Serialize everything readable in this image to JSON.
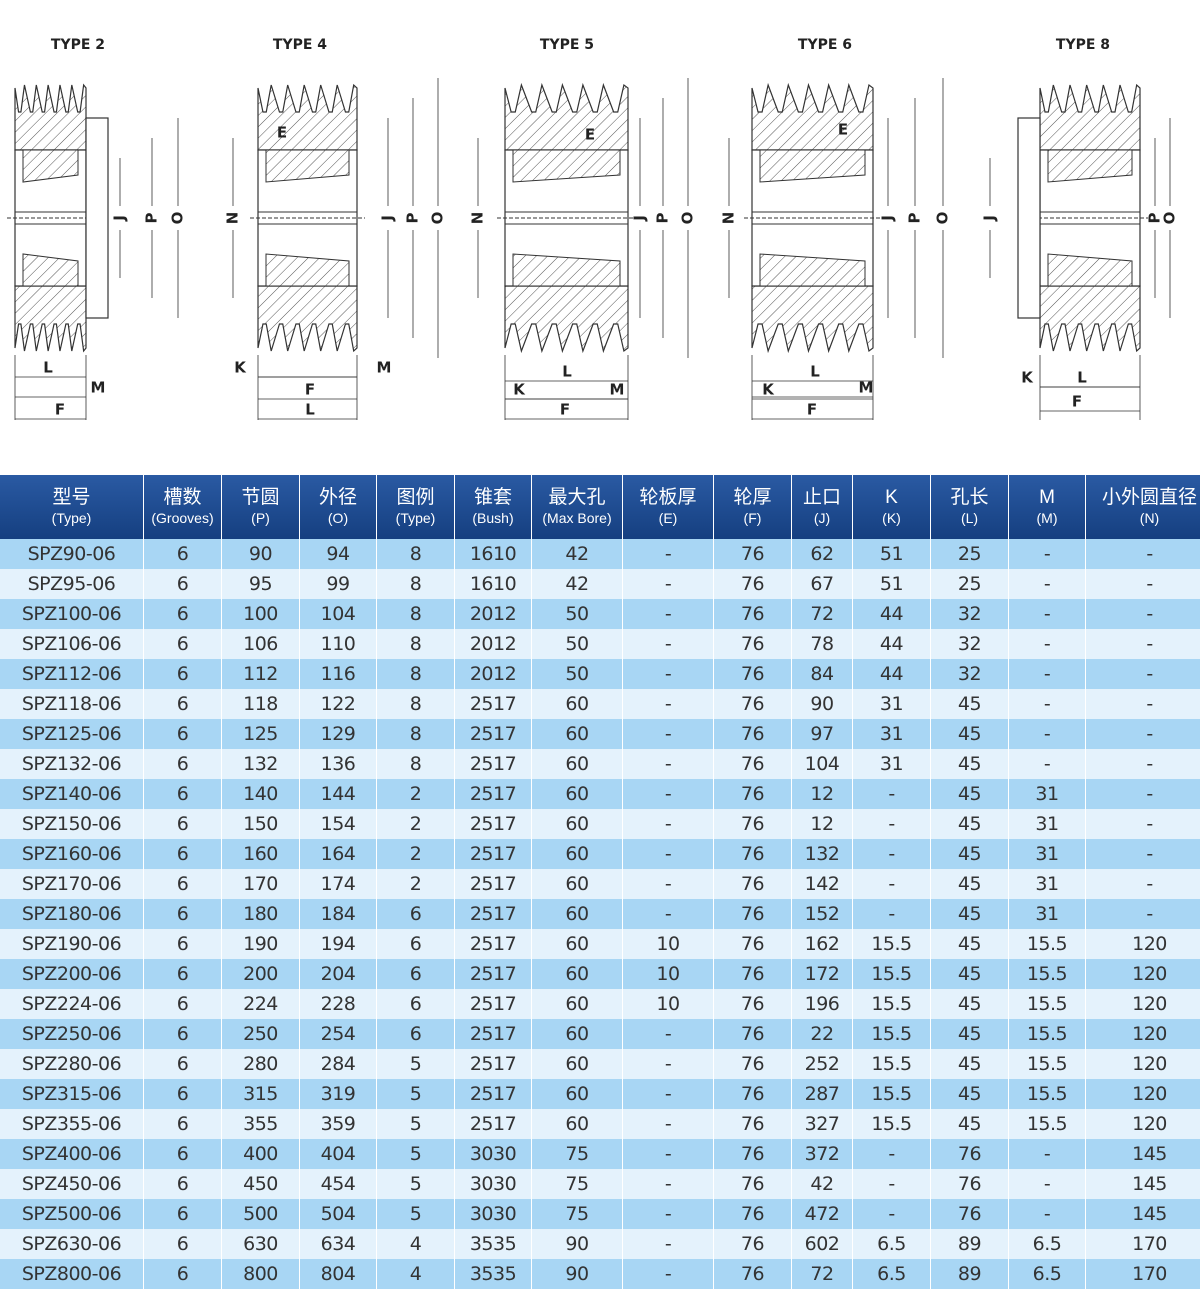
{
  "diagrams": [
    {
      "title": "TYPE 2",
      "labels": [
        "J",
        "P",
        "O",
        "L",
        "M",
        "F"
      ]
    },
    {
      "title": "TYPE 4",
      "labels": [
        "E",
        "N",
        "J",
        "P",
        "O",
        "K",
        "M",
        "F",
        "L"
      ]
    },
    {
      "title": "TYPE 5",
      "labels": [
        "E",
        "N",
        "J",
        "P",
        "O",
        "K",
        "L",
        "M",
        "F"
      ]
    },
    {
      "title": "TYPE 6",
      "labels": [
        "E",
        "N",
        "J",
        "P",
        "O",
        "K",
        "L",
        "M",
        "F"
      ]
    },
    {
      "title": "TYPE 8",
      "labels": [
        "J",
        "P",
        "O",
        "K",
        "L",
        "F"
      ]
    }
  ],
  "table": {
    "header": [
      {
        "zh": "型号",
        "en": "(Type)"
      },
      {
        "zh": "槽数",
        "en": "(Grooves)"
      },
      {
        "zh": "节圆",
        "en": "(P)"
      },
      {
        "zh": "外径",
        "en": "(O)"
      },
      {
        "zh": "图例",
        "en": "(Type)"
      },
      {
        "zh": "锥套",
        "en": "(Bush)"
      },
      {
        "zh": "最大孔",
        "en": "(Max Bore)"
      },
      {
        "zh": "轮板厚",
        "en": "(E)"
      },
      {
        "zh": "轮厚",
        "en": "(F)"
      },
      {
        "zh": "止口",
        "en": "(J)"
      },
      {
        "zh": "K",
        "en": "(K)"
      },
      {
        "zh": "孔长",
        "en": "(L)"
      },
      {
        "zh": "M",
        "en": "(M)"
      },
      {
        "zh": "小外圆直径",
        "en": "(N)"
      }
    ],
    "rows": [
      [
        "SPZ90-06",
        "6",
        "90",
        "94",
        "8",
        "1610",
        "42",
        "-",
        "76",
        "62",
        "51",
        "25",
        "-",
        "-"
      ],
      [
        "SPZ95-06",
        "6",
        "95",
        "99",
        "8",
        "1610",
        "42",
        "-",
        "76",
        "67",
        "51",
        "25",
        "-",
        "-"
      ],
      [
        "SPZ100-06",
        "6",
        "100",
        "104",
        "8",
        "2012",
        "50",
        "-",
        "76",
        "72",
        "44",
        "32",
        "-",
        "-"
      ],
      [
        "SPZ106-06",
        "6",
        "106",
        "110",
        "8",
        "2012",
        "50",
        "-",
        "76",
        "78",
        "44",
        "32",
        "-",
        "-"
      ],
      [
        "SPZ112-06",
        "6",
        "112",
        "116",
        "8",
        "2012",
        "50",
        "-",
        "76",
        "84",
        "44",
        "32",
        "-",
        "-"
      ],
      [
        "SPZ118-06",
        "6",
        "118",
        "122",
        "8",
        "2517",
        "60",
        "-",
        "76",
        "90",
        "31",
        "45",
        "-",
        "-"
      ],
      [
        "SPZ125-06",
        "6",
        "125",
        "129",
        "8",
        "2517",
        "60",
        "-",
        "76",
        "97",
        "31",
        "45",
        "-",
        "-"
      ],
      [
        "SPZ132-06",
        "6",
        "132",
        "136",
        "8",
        "2517",
        "60",
        "-",
        "76",
        "104",
        "31",
        "45",
        "-",
        "-"
      ],
      [
        "SPZ140-06",
        "6",
        "140",
        "144",
        "2",
        "2517",
        "60",
        "-",
        "76",
        "12",
        "-",
        "45",
        "31",
        "-"
      ],
      [
        "SPZ150-06",
        "6",
        "150",
        "154",
        "2",
        "2517",
        "60",
        "-",
        "76",
        "12",
        "-",
        "45",
        "31",
        "-"
      ],
      [
        "SPZ160-06",
        "6",
        "160",
        "164",
        "2",
        "2517",
        "60",
        "-",
        "76",
        "132",
        "-",
        "45",
        "31",
        "-"
      ],
      [
        "SPZ170-06",
        "6",
        "170",
        "174",
        "2",
        "2517",
        "60",
        "-",
        "76",
        "142",
        "-",
        "45",
        "31",
        "-"
      ],
      [
        "SPZ180-06",
        "6",
        "180",
        "184",
        "6",
        "2517",
        "60",
        "-",
        "76",
        "152",
        "-",
        "45",
        "31",
        "-"
      ],
      [
        "SPZ190-06",
        "6",
        "190",
        "194",
        "6",
        "2517",
        "60",
        "10",
        "76",
        "162",
        "15.5",
        "45",
        "15.5",
        "120"
      ],
      [
        "SPZ200-06",
        "6",
        "200",
        "204",
        "6",
        "2517",
        "60",
        "10",
        "76",
        "172",
        "15.5",
        "45",
        "15.5",
        "120"
      ],
      [
        "SPZ224-06",
        "6",
        "224",
        "228",
        "6",
        "2517",
        "60",
        "10",
        "76",
        "196",
        "15.5",
        "45",
        "15.5",
        "120"
      ],
      [
        "SPZ250-06",
        "6",
        "250",
        "254",
        "6",
        "2517",
        "60",
        "-",
        "76",
        "22",
        "15.5",
        "45",
        "15.5",
        "120"
      ],
      [
        "SPZ280-06",
        "6",
        "280",
        "284",
        "5",
        "2517",
        "60",
        "-",
        "76",
        "252",
        "15.5",
        "45",
        "15.5",
        "120"
      ],
      [
        "SPZ315-06",
        "6",
        "315",
        "319",
        "5",
        "2517",
        "60",
        "-",
        "76",
        "287",
        "15.5",
        "45",
        "15.5",
        "120"
      ],
      [
        "SPZ355-06",
        "6",
        "355",
        "359",
        "5",
        "2517",
        "60",
        "-",
        "76",
        "327",
        "15.5",
        "45",
        "15.5",
        "120"
      ],
      [
        "SPZ400-06",
        "6",
        "400",
        "404",
        "5",
        "3030",
        "75",
        "-",
        "76",
        "372",
        "-",
        "76",
        "-",
        "145"
      ],
      [
        "SPZ450-06",
        "6",
        "450",
        "454",
        "5",
        "3030",
        "75",
        "-",
        "76",
        "42",
        "-",
        "76",
        "-",
        "145"
      ],
      [
        "SPZ500-06",
        "6",
        "500",
        "504",
        "5",
        "3030",
        "75",
        "-",
        "76",
        "472",
        "-",
        "76",
        "-",
        "145"
      ],
      [
        "SPZ630-06",
        "6",
        "630",
        "634",
        "4",
        "3535",
        "90",
        "-",
        "76",
        "602",
        "6.5",
        "89",
        "6.5",
        "170"
      ],
      [
        "SPZ800-06",
        "6",
        "800",
        "804",
        "4",
        "3535",
        "90",
        "-",
        "76",
        "72",
        "6.5",
        "89",
        "6.5",
        "170"
      ]
    ]
  }
}
